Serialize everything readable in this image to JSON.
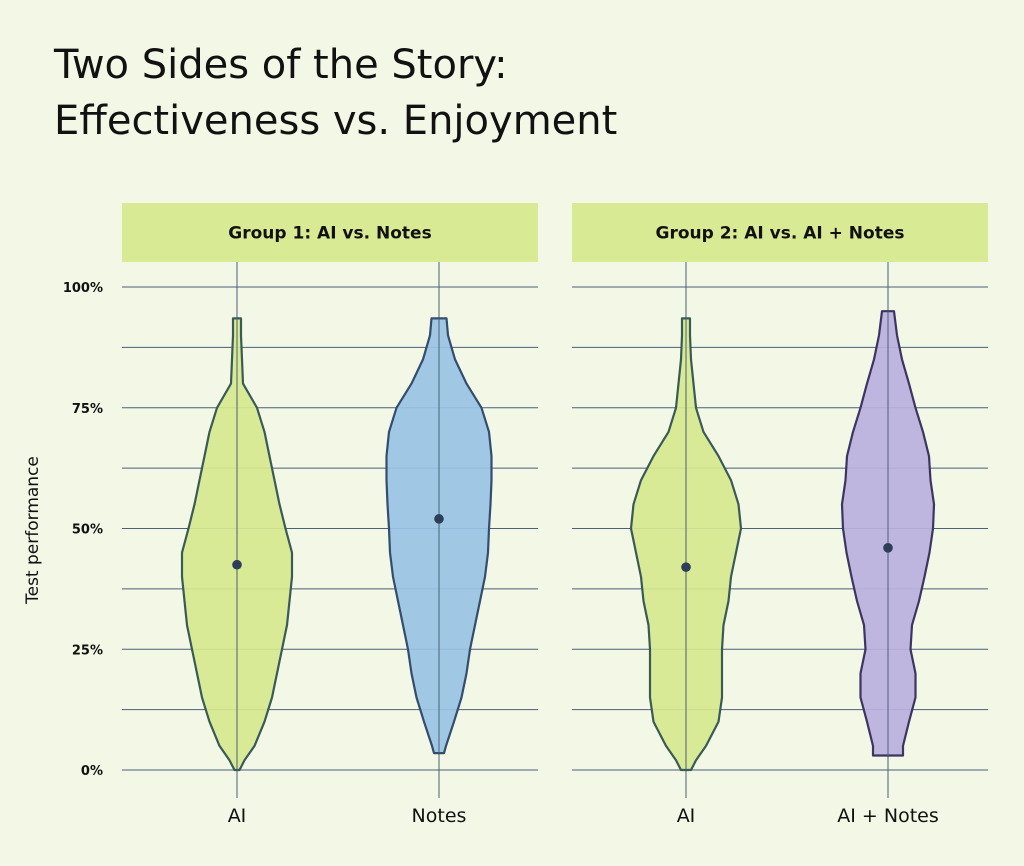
{
  "title_line1": "Two Sides of the Story:",
  "title_line2": "Effectiveness vs. Enjoyment",
  "chart_data": {
    "type": "violin",
    "ylabel": "Test performance",
    "y_unit": "percent",
    "ylim": [
      0,
      100
    ],
    "yticks": [
      0,
      25,
      50,
      75,
      100
    ],
    "ytick_labels": [
      "0%",
      "25%",
      "50%",
      "75%",
      "100%"
    ],
    "grid": true,
    "panels": [
      {
        "strip_label": "Group 1: AI vs. Notes",
        "categories": [
          "AI",
          "Notes"
        ],
        "series": [
          {
            "name": "AI",
            "color": "#d6e88e",
            "stroke": "#3a5a58",
            "mean": 42.5,
            "min": 0,
            "max": 93.5,
            "density": [
              [
                0,
                0.05
              ],
              [
                2,
                0.15
              ],
              [
                5,
                0.35
              ],
              [
                10,
                0.55
              ],
              [
                15,
                0.7
              ],
              [
                20,
                0.8
              ],
              [
                25,
                0.9
              ],
              [
                30,
                1.0
              ],
              [
                35,
                1.05
              ],
              [
                40,
                1.1
              ],
              [
                45,
                1.1
              ],
              [
                50,
                0.97
              ],
              [
                55,
                0.85
              ],
              [
                60,
                0.75
              ],
              [
                65,
                0.65
              ],
              [
                70,
                0.55
              ],
              [
                75,
                0.4
              ],
              [
                80,
                0.12
              ],
              [
                85,
                0.1
              ],
              [
                90,
                0.08
              ],
              [
                93.5,
                0.08
              ]
            ]
          },
          {
            "name": "Notes",
            "color": "#99c3e4",
            "stroke": "#344c6e",
            "mean": 52,
            "min": 3.5,
            "max": 93.5,
            "density": [
              [
                3.5,
                0.1
              ],
              [
                5,
                0.14
              ],
              [
                10,
                0.3
              ],
              [
                15,
                0.45
              ],
              [
                20,
                0.55
              ],
              [
                25,
                0.62
              ],
              [
                30,
                0.72
              ],
              [
                35,
                0.82
              ],
              [
                40,
                0.92
              ],
              [
                45,
                0.98
              ],
              [
                50,
                1.0
              ],
              [
                55,
                1.03
              ],
              [
                60,
                1.05
              ],
              [
                65,
                1.05
              ],
              [
                70,
                1.0
              ],
              [
                75,
                0.85
              ],
              [
                80,
                0.55
              ],
              [
                85,
                0.32
              ],
              [
                90,
                0.18
              ],
              [
                93.5,
                0.15
              ]
            ]
          }
        ]
      },
      {
        "strip_label": "Group 2: AI vs. AI + Notes",
        "categories": [
          "AI",
          "AI + Notes"
        ],
        "series": [
          {
            "name": "AI",
            "color": "#d6e88e",
            "stroke": "#3a5a58",
            "mean": 42,
            "min": 0,
            "max": 93.5,
            "density": [
              [
                0,
                0.1
              ],
              [
                2,
                0.2
              ],
              [
                5,
                0.4
              ],
              [
                10,
                0.65
              ],
              [
                15,
                0.72
              ],
              [
                20,
                0.72
              ],
              [
                25,
                0.72
              ],
              [
                30,
                0.75
              ],
              [
                35,
                0.85
              ],
              [
                40,
                0.9
              ],
              [
                45,
                1.0
              ],
              [
                50,
                1.1
              ],
              [
                55,
                1.05
              ],
              [
                60,
                0.9
              ],
              [
                65,
                0.65
              ],
              [
                70,
                0.35
              ],
              [
                75,
                0.2
              ],
              [
                80,
                0.15
              ],
              [
                85,
                0.1
              ],
              [
                90,
                0.08
              ],
              [
                93.5,
                0.08
              ]
            ]
          },
          {
            "name": "AI + Notes",
            "color": "#bbb0e0",
            "stroke": "#3c3560",
            "mean": 46,
            "min": 3,
            "max": 95,
            "density": [
              [
                3,
                0.3
              ],
              [
                5,
                0.3
              ],
              [
                10,
                0.42
              ],
              [
                15,
                0.55
              ],
              [
                20,
                0.55
              ],
              [
                25,
                0.45
              ],
              [
                30,
                0.48
              ],
              [
                35,
                0.62
              ],
              [
                40,
                0.73
              ],
              [
                45,
                0.83
              ],
              [
                50,
                0.9
              ],
              [
                55,
                0.92
              ],
              [
                60,
                0.85
              ],
              [
                65,
                0.82
              ],
              [
                70,
                0.7
              ],
              [
                75,
                0.55
              ],
              [
                80,
                0.42
              ],
              [
                85,
                0.28
              ],
              [
                90,
                0.18
              ],
              [
                95,
                0.12
              ]
            ]
          }
        ]
      }
    ]
  }
}
